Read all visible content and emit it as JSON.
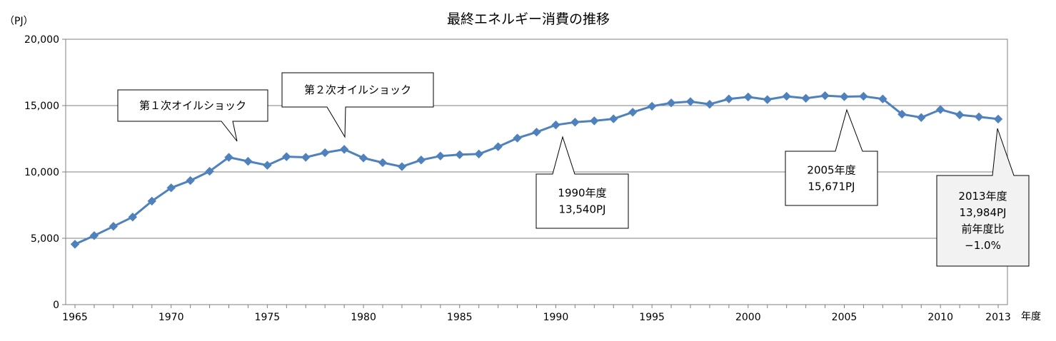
{
  "chart_data": {
    "type": "line",
    "title": "最終エネルギー消費の推移",
    "ylabel": "（PJ）",
    "xlabel": "年度",
    "ylim": [
      0,
      20000
    ],
    "yticks": [
      "0",
      "5,000",
      "10,000",
      "15,000",
      "20,000"
    ],
    "xticks": [
      "1965",
      "1970",
      "1975",
      "1980",
      "1985",
      "1990",
      "1995",
      "2000",
      "2005",
      "2010",
      "2013"
    ],
    "grid": "horizontal",
    "series": [
      {
        "color": "#4f81bd",
        "marker": "diamond",
        "x": [
          1965,
          1966,
          1967,
          1968,
          1969,
          1970,
          1971,
          1972,
          1973,
          1974,
          1975,
          1976,
          1977,
          1978,
          1979,
          1980,
          1981,
          1982,
          1983,
          1984,
          1985,
          1986,
          1987,
          1988,
          1989,
          1990,
          1991,
          1992,
          1993,
          1994,
          1995,
          1996,
          1997,
          1998,
          1999,
          2000,
          2001,
          2002,
          2003,
          2004,
          2005,
          2006,
          2007,
          2008,
          2009,
          2010,
          2011,
          2012,
          2013
        ],
        "values": [
          4550,
          5200,
          5900,
          6600,
          7800,
          8800,
          9350,
          10050,
          11100,
          10800,
          10500,
          11150,
          11100,
          11450,
          11700,
          11050,
          10700,
          10400,
          10900,
          11200,
          11300,
          11350,
          11900,
          12550,
          13000,
          13540,
          13750,
          13850,
          14000,
          14500,
          14950,
          15200,
          15300,
          15100,
          15500,
          15650,
          15450,
          15700,
          15550,
          15750,
          15671,
          15700,
          15500,
          14350,
          14100,
          14700,
          14300,
          14150,
          13984
        ]
      }
    ],
    "annotations": [
      {
        "lines": [
          "第１次オイルショック"
        ],
        "x": 1973,
        "style": "plain"
      },
      {
        "lines": [
          "第２次オイルショック"
        ],
        "x": 1979,
        "style": "plain"
      },
      {
        "lines": [
          "1990年度",
          "13,540PJ"
        ],
        "x": 1990,
        "style": "plain"
      },
      {
        "lines": [
          "2005年度",
          "15,671PJ"
        ],
        "x": 2005,
        "style": "plain"
      },
      {
        "lines": [
          "2013年度",
          "13,984PJ",
          "前年度比",
          "−1.0%"
        ],
        "x": 2013,
        "style": "shaded"
      }
    ]
  }
}
